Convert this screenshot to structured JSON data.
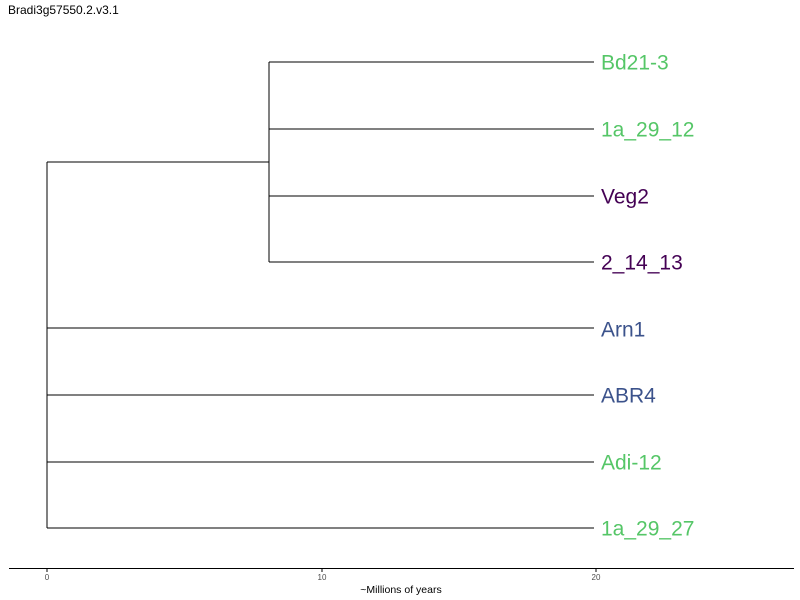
{
  "title": "Bradi3g57550.2.v3.1",
  "colors": {
    "green": "#55c667",
    "purple": "#440154",
    "blue": "#3b528b"
  },
  "tree": {
    "tips": [
      {
        "label": "Bd21-3",
        "color": "#55c667"
      },
      {
        "label": "1a_29_12",
        "color": "#55c667"
      },
      {
        "label": "Veg2",
        "color": "#440154"
      },
      {
        "label": "2_14_13",
        "color": "#440154"
      },
      {
        "label": "Arn1",
        "color": "#3b528b"
      },
      {
        "label": "ABR4",
        "color": "#3b528b"
      },
      {
        "label": "Adi-12",
        "color": "#55c667"
      },
      {
        "label": "1a_29_27",
        "color": "#55c667"
      }
    ]
  },
  "axis": {
    "title": "~Millions of years",
    "ticks": [
      {
        "value": 0,
        "label": "0"
      },
      {
        "value": 10,
        "label": "10"
      },
      {
        "value": 20,
        "label": "20"
      }
    ]
  }
}
